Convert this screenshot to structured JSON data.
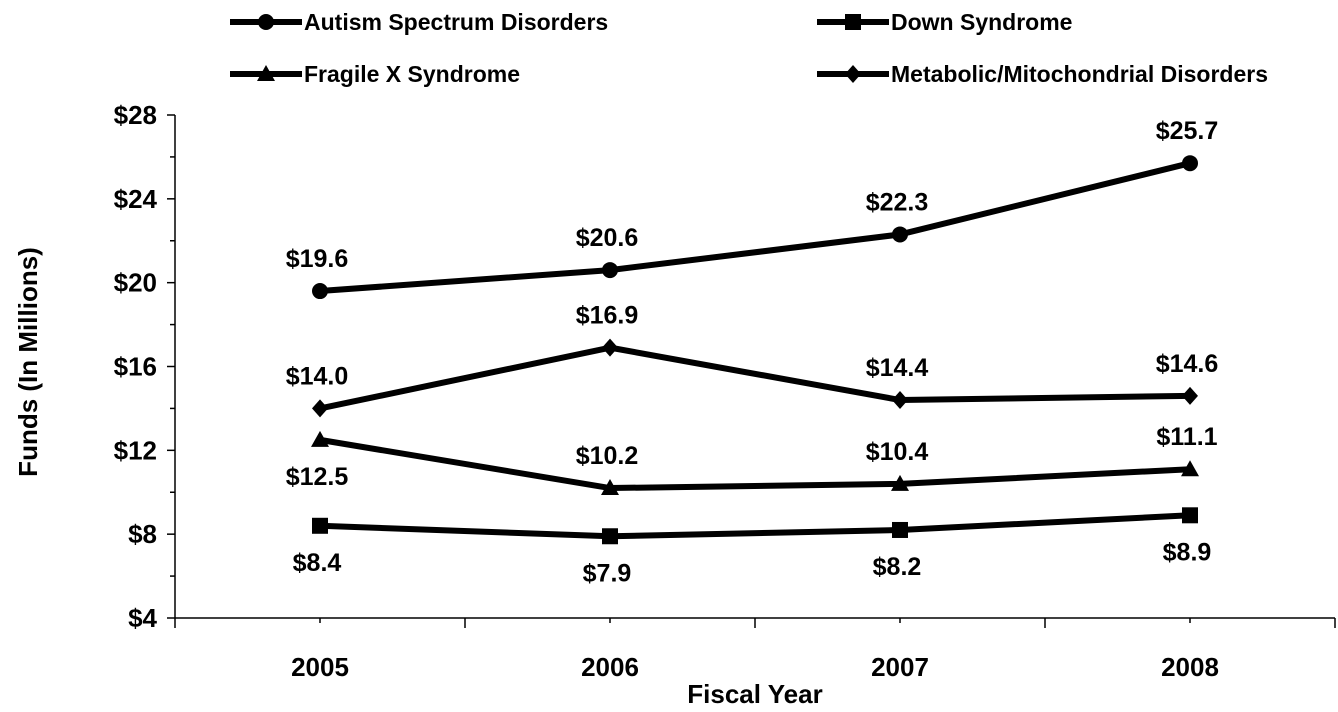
{
  "chart_data": {
    "type": "line",
    "title": "",
    "xlabel": "Fiscal Year",
    "ylabel": "Funds (In Millions)",
    "categories": [
      "2005",
      "2006",
      "2007",
      "2008"
    ],
    "ylim": [
      4,
      28
    ],
    "yticks": [
      4,
      8,
      12,
      16,
      20,
      24,
      28
    ],
    "ytick_labels": [
      "$4",
      "$8",
      "$12",
      "$16",
      "$20",
      "$24",
      "$28"
    ],
    "grid": false,
    "legend_position": "top",
    "line_color": "#000000",
    "series": [
      {
        "name": "Autism Spectrum Disorders",
        "marker": "circle",
        "values": [
          19.6,
          20.6,
          22.3,
          25.7
        ],
        "labels": [
          "$19.6",
          "$20.6",
          "$22.3",
          "$25.7"
        ],
        "label_position": [
          "above",
          "above",
          "above",
          "above"
        ]
      },
      {
        "name": "Down Syndrome",
        "marker": "square",
        "values": [
          8.4,
          7.9,
          8.2,
          8.9
        ],
        "labels": [
          "$8.4",
          "$7.9",
          "$8.2",
          "$8.9"
        ],
        "label_position": [
          "below",
          "below",
          "below",
          "below"
        ]
      },
      {
        "name": "Fragile X Syndrome",
        "marker": "triangle",
        "values": [
          12.5,
          10.2,
          10.4,
          11.1
        ],
        "labels": [
          "$12.5",
          "$10.2",
          "$10.4",
          "$11.1"
        ],
        "label_position": [
          "below",
          "above",
          "above",
          "above"
        ]
      },
      {
        "name": "Metabolic/Mitochondrial Disorders",
        "marker": "diamond",
        "values": [
          14.0,
          16.9,
          14.4,
          14.6
        ],
        "labels": [
          "$14.0",
          "$16.9",
          "$14.4",
          "$14.6"
        ],
        "label_position": [
          "above",
          "above",
          "above",
          "above"
        ]
      }
    ]
  }
}
